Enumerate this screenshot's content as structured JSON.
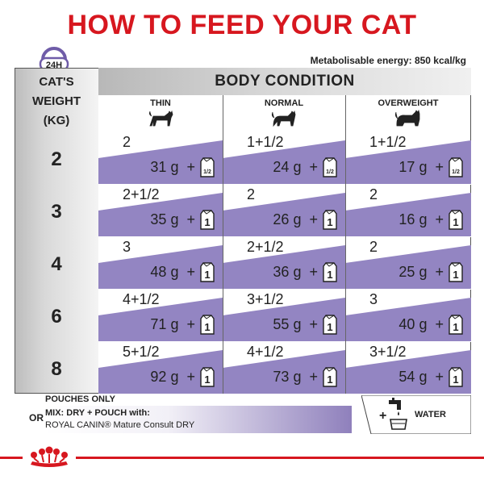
{
  "title": "HOW TO FEED YOUR CAT",
  "clock_label": "24H",
  "energy": "Metabolisable energy: 850 kcal/kg",
  "weight_header": [
    "CAT'S",
    "WEIGHT",
    "(KG)"
  ],
  "body_condition": "BODY CONDITION",
  "columns": [
    "THIN",
    "NORMAL",
    "OVERWEIGHT"
  ],
  "weights": [
    "2",
    "3",
    "4",
    "6",
    "8"
  ],
  "rows": [
    [
      {
        "pouch": "2",
        "grams": "31 g",
        "unit": "1/2"
      },
      {
        "pouch": "1+1/2",
        "grams": "24 g",
        "unit": "1/2"
      },
      {
        "pouch": "1+1/2",
        "grams": "17 g",
        "unit": "1/2"
      }
    ],
    [
      {
        "pouch": "2+1/2",
        "grams": "35 g",
        "unit": "1"
      },
      {
        "pouch": "2",
        "grams": "26 g",
        "unit": "1"
      },
      {
        "pouch": "2",
        "grams": "16 g",
        "unit": "1"
      }
    ],
    [
      {
        "pouch": "3",
        "grams": "48 g",
        "unit": "1"
      },
      {
        "pouch": "2+1/2",
        "grams": "36 g",
        "unit": "1"
      },
      {
        "pouch": "2",
        "grams": "25 g",
        "unit": "1"
      }
    ],
    [
      {
        "pouch": "4+1/2",
        "grams": "71 g",
        "unit": "1"
      },
      {
        "pouch": "3+1/2",
        "grams": "55 g",
        "unit": "1"
      },
      {
        "pouch": "3",
        "grams": "40 g",
        "unit": "1"
      }
    ],
    [
      {
        "pouch": "5+1/2",
        "grams": "92 g",
        "unit": "1"
      },
      {
        "pouch": "4+1/2",
        "grams": "73 g",
        "unit": "1"
      },
      {
        "pouch": "3+1/2",
        "grams": "54 g",
        "unit": "1"
      }
    ]
  ],
  "plus": "+",
  "pouches_only": "POUCHES ONLY",
  "or": "OR",
  "mix_line1": "MIX: DRY + POUCH with:",
  "mix_line2": "ROYAL CANIN® Mature Consult DRY",
  "water_plus": "+",
  "water": "WATER",
  "colors": {
    "accent": "#d7171f",
    "purple": "#8f80bc",
    "clock": "#6f5ca8"
  },
  "icons": [
    "clock-icon",
    "cat-thin-icon",
    "cat-normal-icon",
    "cat-overweight-icon",
    "pouch-icon",
    "water-tap-icon",
    "royal-canin-crown-logo"
  ]
}
